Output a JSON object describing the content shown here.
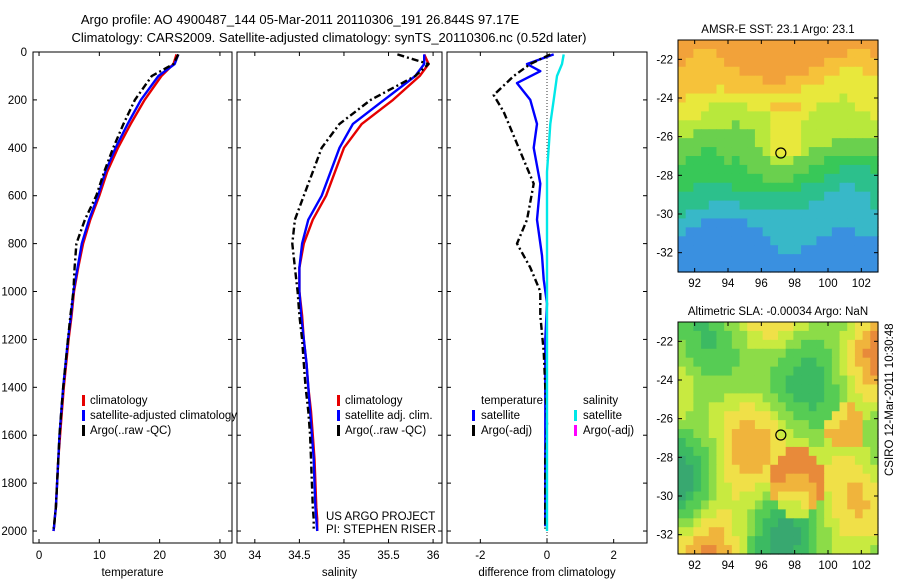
{
  "title": {
    "line1": "Argo profile: AO 4900487_144 05-Mar-2011 20110306_191 26.844S 97.17E",
    "line2": "Climatology: CARS2009. Satellite-adjusted climatology: synTS_20110306.nc (0.52d later)"
  },
  "footer": {
    "project": "US ARGO PROJECT",
    "pi": "PI: STEPHEN RISER",
    "side_stamp": "CSIRO 12-Mar-2011 10:30:48"
  },
  "colors": {
    "climatology": "#e60000",
    "satellite": "#0000ff",
    "argo": "#000000",
    "sal_satellite": "#00e8e8",
    "sal_argo": "#ff00ff",
    "marker": "#000000"
  },
  "chart_data": [
    {
      "type": "line",
      "xlabel": "temperature",
      "ylabel": "",
      "xlim": [
        -1,
        32
      ],
      "ylim": [
        2050,
        0
      ],
      "xticks": [
        0,
        10,
        20,
        30
      ],
      "yticks": [
        0,
        200,
        400,
        600,
        800,
        1000,
        1200,
        1400,
        1600,
        1800,
        2000
      ],
      "legend": [
        "climatology",
        "satellite-adjusted climatology",
        "Argo(..raw -QC)"
      ],
      "legend_placement": "lower-right",
      "series": [
        {
          "name": "climatology",
          "style": "climatology",
          "x": [
            22.8,
            22.3,
            20.3,
            17.5,
            15.2,
            13.1,
            11.3,
            10.0,
            8.5,
            7.3,
            6.5,
            5.8,
            5.4,
            4.9,
            4.5,
            4.1,
            3.8,
            3.5,
            3.2,
            3.0,
            2.8,
            2.6,
            2.5,
            2.4
          ],
          "y": [
            10,
            50,
            100,
            200,
            300,
            400,
            500,
            600,
            700,
            800,
            900,
            1000,
            1100,
            1200,
            1300,
            1400,
            1500,
            1600,
            1700,
            1800,
            1900,
            1950,
            1980,
            2000
          ]
        },
        {
          "name": "satellite-adjusted climatology",
          "style": "satellite",
          "x": [
            23.1,
            22.5,
            19.8,
            16.9,
            14.7,
            12.7,
            11.0,
            9.8,
            8.3,
            7.1,
            6.4,
            5.7,
            5.3,
            4.8,
            4.4,
            4.0,
            3.7,
            3.4,
            3.2,
            3.0,
            2.8,
            2.6,
            2.5,
            2.4
          ],
          "y": [
            10,
            50,
            100,
            200,
            300,
            400,
            500,
            600,
            700,
            800,
            900,
            1000,
            1100,
            1200,
            1300,
            1400,
            1500,
            1600,
            1700,
            1800,
            1900,
            1950,
            1980,
            2000
          ]
        },
        {
          "name": "Argo(..raw -QC)",
          "style": "argo",
          "x": [
            23.1,
            22.3,
            18.7,
            15.9,
            14.0,
            12.3,
            10.8,
            9.5,
            7.6,
            6.2,
            5.9,
            5.7,
            5.2,
            4.8,
            4.4,
            4.0,
            3.7,
            3.4,
            3.2,
            3.0,
            2.8,
            2.6,
            2.5,
            2.4
          ],
          "y": [
            10,
            50,
            100,
            200,
            300,
            400,
            500,
            600,
            700,
            800,
            900,
            1000,
            1100,
            1200,
            1300,
            1400,
            1500,
            1600,
            1700,
            1800,
            1900,
            1950,
            1980,
            1990
          ]
        }
      ]
    },
    {
      "type": "line",
      "xlabel": "salinity",
      "xlim": [
        33.8,
        36.1
      ],
      "ylim": [
        2050,
        0
      ],
      "xticks": [
        34,
        34.5,
        35,
        35.5,
        36
      ],
      "legend": [
        "climatology",
        "satellite adj. clim.",
        "Argo(..raw -QC)"
      ],
      "legend_placement": "lower-right",
      "series": [
        {
          "name": "climatology",
          "style": "climatology",
          "x": [
            35.9,
            35.95,
            35.85,
            35.55,
            35.2,
            35.0,
            34.9,
            34.8,
            34.65,
            34.55,
            34.5,
            34.5,
            34.53,
            34.55,
            34.58,
            34.6,
            34.63,
            34.65,
            34.67,
            34.68,
            34.69,
            34.7,
            34.7
          ],
          "y": [
            10,
            50,
            100,
            200,
            300,
            400,
            500,
            600,
            700,
            800,
            900,
            1000,
            1100,
            1200,
            1300,
            1400,
            1500,
            1600,
            1700,
            1800,
            1900,
            1950,
            2000
          ]
        },
        {
          "name": "satellite adj. clim.",
          "style": "satellite",
          "x": [
            35.9,
            35.9,
            35.8,
            35.45,
            35.1,
            34.95,
            34.85,
            34.75,
            34.6,
            34.53,
            34.5,
            34.5,
            34.52,
            34.55,
            34.58,
            34.6,
            34.62,
            34.64,
            34.66,
            34.67,
            34.68,
            34.69,
            34.7
          ],
          "y": [
            10,
            50,
            100,
            200,
            300,
            400,
            500,
            600,
            700,
            800,
            900,
            1000,
            1100,
            1200,
            1300,
            1400,
            1500,
            1600,
            1700,
            1800,
            1900,
            1950,
            2000
          ]
        },
        {
          "name": "Argo(..raw -QC)",
          "style": "argo",
          "x": [
            35.6,
            35.95,
            35.8,
            35.3,
            34.95,
            34.75,
            34.65,
            34.55,
            34.45,
            34.42,
            34.45,
            34.48,
            34.5,
            34.53,
            34.55,
            34.57,
            34.6,
            34.62,
            34.63,
            34.64,
            34.65,
            34.66,
            34.66
          ],
          "y": [
            10,
            50,
            100,
            200,
            300,
            400,
            500,
            600,
            700,
            800,
            900,
            1000,
            1100,
            1200,
            1300,
            1400,
            1500,
            1600,
            1700,
            1800,
            1900,
            1950,
            1990
          ]
        }
      ]
    },
    {
      "type": "line",
      "xlabel": "difference from climatology",
      "xlim": [
        -3,
        3
      ],
      "ylim": [
        2050,
        0
      ],
      "xticks": [
        -2,
        0,
        2
      ],
      "legend_groups": [
        {
          "title": "temperature",
          "items": [
            "satellite",
            "Argo(-adj)"
          ]
        },
        {
          "title": "salinity",
          "items": [
            "satellite",
            "Argo(-adj)"
          ]
        }
      ],
      "legend_placement": "lower",
      "series": [
        {
          "name": "temperature satellite",
          "style": "satellite",
          "x": [
            0.2,
            -0.6,
            -0.2,
            -0.9,
            -0.5,
            -0.3,
            -0.4,
            -0.2,
            -0.3,
            -0.15,
            -0.1,
            0.0,
            -0.05,
            -0.05,
            -0.05,
            -0.05,
            -0.05,
            -0.05,
            -0.05,
            -0.05
          ],
          "y": [
            10,
            50,
            80,
            130,
            200,
            300,
            400,
            550,
            700,
            850,
            950,
            1050,
            1200,
            1350,
            1500,
            1600,
            1700,
            1800,
            1900,
            1980
          ]
        },
        {
          "name": "temperature Argo(-adj)",
          "style": "argo",
          "x": [
            0.1,
            -0.5,
            -1.0,
            -1.6,
            -1.3,
            -1.0,
            -0.7,
            -0.4,
            -0.6,
            -0.9,
            -0.5,
            -0.2,
            -0.2,
            -0.1,
            -0.05,
            0.0,
            -0.05,
            -0.05,
            -0.05,
            -0.05
          ],
          "y": [
            10,
            50,
            100,
            180,
            250,
            350,
            450,
            550,
            700,
            800,
            900,
            1000,
            1100,
            1250,
            1400,
            1550,
            1700,
            1800,
            1900,
            1990
          ]
        },
        {
          "name": "salinity satellite",
          "style": "sal_satellite",
          "x": [
            0.5,
            0.45,
            0.3,
            0.2,
            0.1,
            0.05,
            0.0,
            0.0,
            0.0,
            0.0,
            0.0,
            0.0,
            0.0,
            0.0,
            0.0,
            0.0,
            0.0,
            0.0,
            0.0,
            0.0
          ],
          "y": [
            10,
            50,
            100,
            200,
            300,
            400,
            500,
            600,
            700,
            800,
            900,
            1000,
            1100,
            1200,
            1300,
            1400,
            1500,
            1600,
            1800,
            2000
          ]
        }
      ],
      "zero_line": 0
    },
    {
      "type": "heatmap",
      "title": "AMSR-E SST: 23.1 Argo: 23.1",
      "xticks": [
        92,
        94,
        96,
        98,
        100,
        102
      ],
      "yticks": [
        -22,
        -24,
        -26,
        -28,
        -30,
        -32
      ],
      "xlim": [
        91,
        103
      ],
      "ylim": [
        -33,
        -21
      ],
      "marker": {
        "lon": 97.17,
        "lat": -26.844
      },
      "palette": [
        "#f2a23a",
        "#f6c23a",
        "#e8e83c",
        "#b8e83c",
        "#6ad04e",
        "#38c858",
        "#2cc08c",
        "#38b8c8",
        "#3a90e0"
      ]
    },
    {
      "type": "heatmap",
      "title": "Altimetric SLA: -0.00034 Argo: NaN",
      "xticks": [
        92,
        94,
        96,
        98,
        100,
        102
      ],
      "yticks": [
        -22,
        -24,
        -26,
        -28,
        -30,
        -32
      ],
      "xlim": [
        91,
        103
      ],
      "ylim": [
        -33,
        -21
      ],
      "marker": {
        "lon": 97.17,
        "lat": -26.844
      },
      "palette": [
        "#e88a3a",
        "#f0b43c",
        "#f0e048",
        "#c8ea40",
        "#8cdc48",
        "#56cc54",
        "#3cba62",
        "#38a870"
      ]
    }
  ]
}
